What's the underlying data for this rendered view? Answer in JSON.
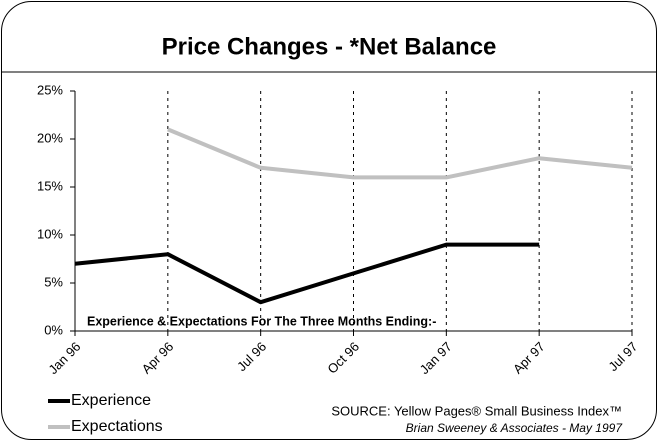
{
  "chart_data": {
    "type": "line",
    "title": "Price Changes - *Net Balance",
    "categories": [
      "Jan 96",
      "Apr 96",
      "Jul 96",
      "Oct 96",
      "Jan 97",
      "Apr 97",
      "Jul 97"
    ],
    "series": [
      {
        "name": "Experience",
        "color": "#000000",
        "values": [
          7,
          8,
          3,
          6,
          9,
          9,
          null
        ]
      },
      {
        "name": "Expectations",
        "color": "#c0c0c0",
        "values": [
          null,
          21,
          17,
          16,
          16,
          18,
          17
        ]
      }
    ],
    "ylim": [
      0,
      25
    ],
    "yticks": [
      {
        "value": 0,
        "label": "0%"
      },
      {
        "value": 5,
        "label": "5%"
      },
      {
        "value": 10,
        "label": "10%"
      },
      {
        "value": 15,
        "label": "15%"
      },
      {
        "value": 20,
        "label": "20%"
      },
      {
        "value": 25,
        "label": "25%"
      }
    ],
    "grid": true,
    "legend": "bottom-left",
    "annotation": "Experience & Expectations For The Three Months  Ending:-",
    "source": [
      "SOURCE: Yellow Pages® Small Business Index™",
      "Brian Sweeney & Associates - May 1997"
    ]
  }
}
